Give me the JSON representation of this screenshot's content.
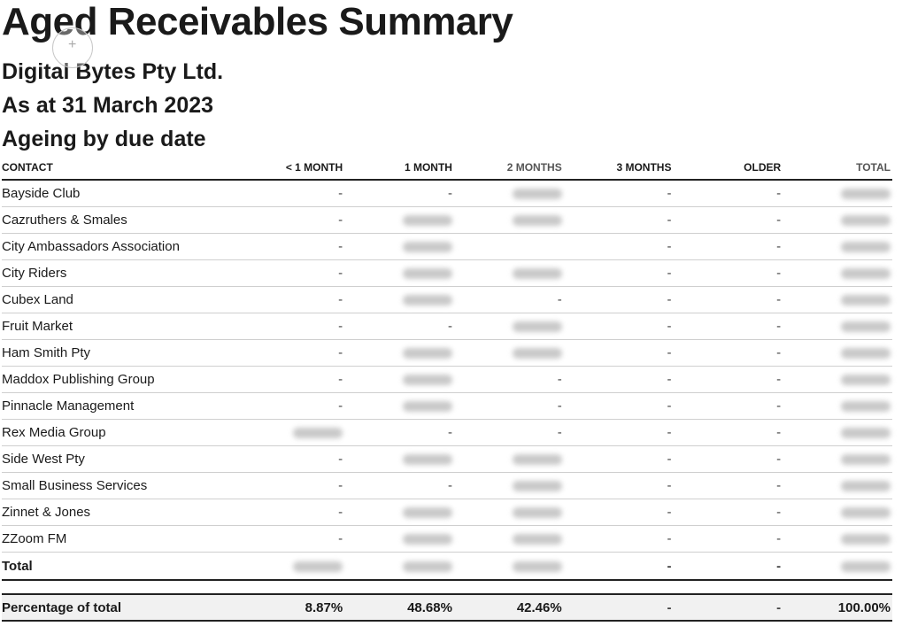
{
  "report": {
    "title": "Aged Receivables Summary",
    "company": "Digital Bytes Pty Ltd.",
    "as_at": "As at 31 March 2023",
    "ageing": "Ageing by due date"
  },
  "table": {
    "headers": [
      "CONTACT",
      "< 1 MONTH",
      "1 MONTH",
      "2 MONTHS",
      "3 MONTHS",
      "OLDER",
      "TOTAL"
    ],
    "rows": [
      {
        "contact": "Bayside Club",
        "cells": [
          "-",
          "-",
          "#",
          "-",
          "-",
          "#"
        ]
      },
      {
        "contact": "Cazruthers & Smales",
        "cells": [
          "-",
          "#",
          "#",
          "-",
          "-",
          "#"
        ]
      },
      {
        "contact": "City Ambassadors Association",
        "cells": [
          "-",
          "#",
          "",
          "-",
          "-",
          "#"
        ]
      },
      {
        "contact": "City Riders",
        "cells": [
          "-",
          "#",
          "#",
          "-",
          "-",
          "#"
        ]
      },
      {
        "contact": "Cubex Land",
        "cells": [
          "-",
          "#",
          "-",
          "-",
          "-",
          "#"
        ]
      },
      {
        "contact": "Fruit Market",
        "cells": [
          "-",
          "-",
          "#",
          "-",
          "-",
          "#"
        ]
      },
      {
        "contact": "Ham Smith Pty",
        "cells": [
          "-",
          "#",
          "#",
          "-",
          "-",
          "#"
        ]
      },
      {
        "contact": "Maddox Publishing Group",
        "cells": [
          "-",
          "#",
          "-",
          "-",
          "-",
          "#"
        ]
      },
      {
        "contact": "Pinnacle Management",
        "cells": [
          "-",
          "#",
          "-",
          "-",
          "-",
          "#"
        ]
      },
      {
        "contact": "Rex Media Group",
        "cells": [
          "#",
          "-",
          "-",
          "-",
          "-",
          "#"
        ]
      },
      {
        "contact": "Side West Pty",
        "cells": [
          "-",
          "#",
          "#",
          "-",
          "-",
          "#"
        ]
      },
      {
        "contact": "Small Business Services",
        "cells": [
          "-",
          "-",
          "#",
          "-",
          "-",
          "#"
        ]
      },
      {
        "contact": "Zinnet & Jones",
        "cells": [
          "-",
          "#",
          "#",
          "-",
          "-",
          "#"
        ]
      },
      {
        "contact": "ZZoom FM",
        "cells": [
          "-",
          "#",
          "#",
          "-",
          "-",
          "#"
        ]
      }
    ],
    "total": {
      "label": "Total",
      "cells": [
        "#",
        "#",
        "#",
        "-",
        "-",
        "#"
      ]
    },
    "percentage": {
      "label": "Percentage of total",
      "cells": [
        "8.87%",
        "48.68%",
        "42.46%",
        "-",
        "-",
        "100.00%"
      ]
    }
  }
}
